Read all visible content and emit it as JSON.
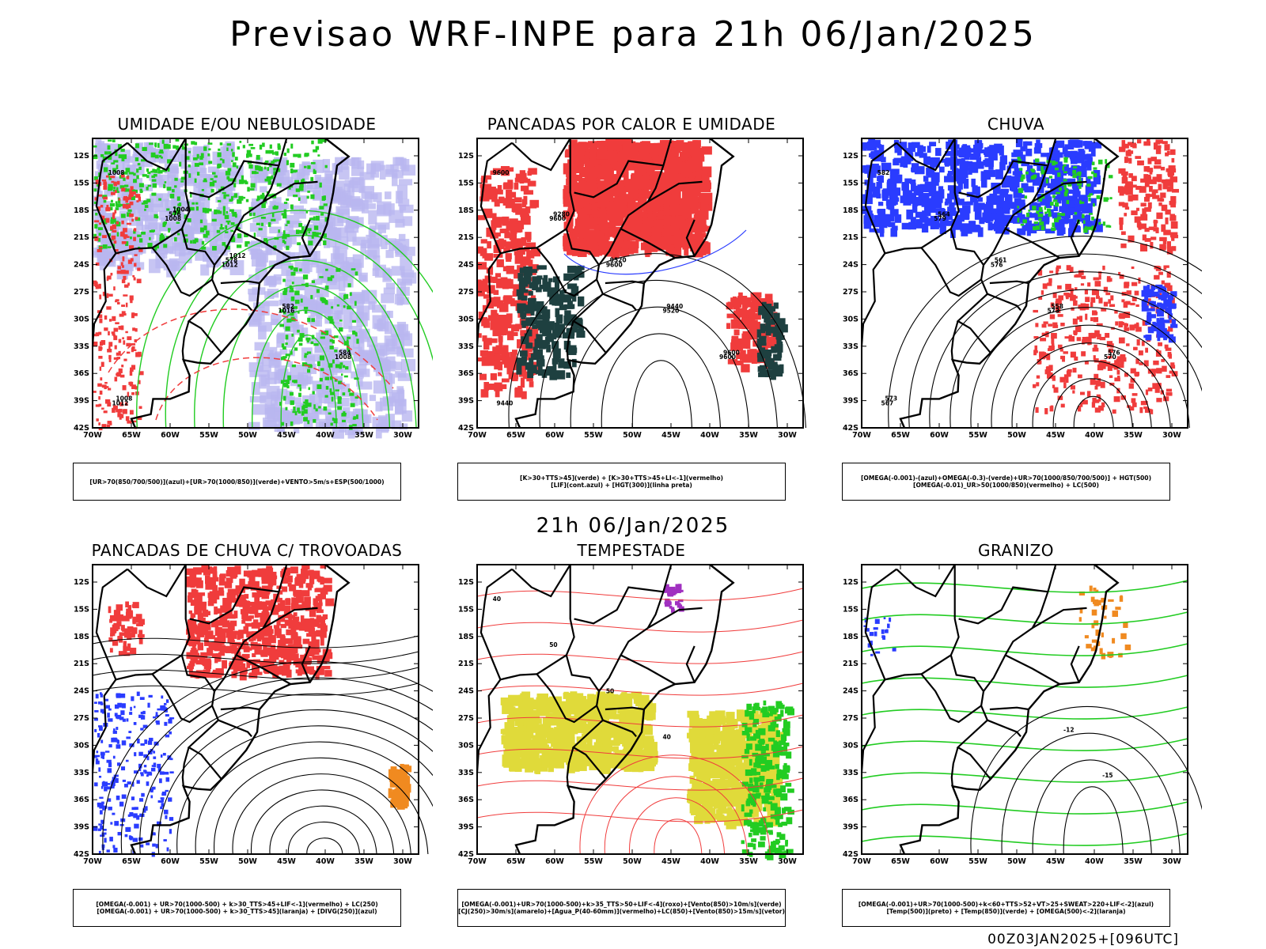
{
  "title": "Previsao WRF-INPE  para 21h 06/Jan/2025",
  "mid_title": "21h 06/Jan/2025",
  "footer": "00Z03JAN2025+[096UTC]",
  "axes": {
    "lat_ticks": [
      "12S",
      "15S",
      "18S",
      "21S",
      "24S",
      "27S",
      "30S",
      "33S",
      "36S",
      "39S",
      "42S"
    ],
    "lon_ticks": [
      "70W",
      "65W",
      "60W",
      "55W",
      "50W",
      "45W",
      "40W",
      "35W",
      "30W"
    ]
  },
  "colors": {
    "blue": "#2a3cff",
    "lavender": "#b9b6f0",
    "green": "#22cc22",
    "red": "#f03c3c",
    "darkteal": "#1e4040",
    "yellow": "#e0da3a",
    "orange": "#f08a20",
    "purple": "#a030c0"
  },
  "panels": [
    {
      "id": "umidade",
      "title": "UMIDADE E/OU NEBULOSIDADE",
      "legend": [
        "[UR>70(850/700/500)](azul)+[UR>70(1000/850)](verde)+VENTO>5m/s+ESP(500/1000)"
      ],
      "contour_labels": [
        "1008",
        "1008",
        "1012",
        "1016",
        "1008",
        "1012",
        "576",
        "578",
        "582",
        "584",
        "1008",
        "1004",
        "1012"
      ]
    },
    {
      "id": "pancadas-calor",
      "title": "PANCADAS POR CALOR E UMIDADE",
      "legend": [
        "[K>30+TTS>45](verde) + [K>30+TTS>45+LI<-1](vermelho)",
        "[LIF](cont.azul) + [HGT(300)](linha preta)"
      ],
      "contour_labels": [
        "9600",
        "9600",
        "9600",
        "9520",
        "9600",
        "9440",
        "9280",
        "9520",
        "9440",
        "9600"
      ]
    },
    {
      "id": "chuva",
      "title": "CHUVA",
      "legend": [
        "[OMEGA(-0.001)-(azul)+OMEGA(-0.3)-(verde)+UR>70(1000/850/700/500)] + HGT(500)",
        "[OMEGA(-0.01)_UR>50(1000/850)(vermelho) + LC(500)"
      ],
      "contour_labels": [
        "582",
        "579",
        "576",
        "573",
        "570",
        "567",
        "564",
        "561",
        "558",
        "576",
        "573"
      ]
    },
    {
      "id": "pancadas-trovoadas",
      "title": "PANCADAS DE CHUVA C/ TROVOADAS",
      "legend": [
        "[OMEGA(-0.001) + UR>70(1000-500) + k>30_TTS>45+LIF<-1](vermelho) + LC(250)",
        "[OMEGA(-0.001) + UR>70(1000-500) + k>30_TTS>45](laranja) + [DIVG(250)](azul)"
      ],
      "contour_labels": []
    },
    {
      "id": "tempestade",
      "title": "TEMPESTADE",
      "legend": [
        "[OMEGA(-0.001)+UR>70(1000-500)+k>35_TTS>50+LIF<-4](roxo)+[Vento(850)>10m/s](verde)",
        "[CJ(250)>30m/s](amarelo)+[Agua_P(40-60mm)](vermelho)+LC(850)+[Vento(850)>15m/s](vetor)"
      ],
      "contour_labels": [
        "40",
        "50",
        "50",
        "40"
      ]
    },
    {
      "id": "granizo",
      "title": "GRANIZO",
      "legend": [
        "[OMEGA(-0.001)+UR>70(1000-500)+k<60+TTS>52+VT>25+SWEAT>220+LIF<-2](azul)",
        "[Temp(500)](preto) + [Temp(850)](verde) + [OMEGA(500)<-2](laranja)"
      ],
      "contour_labels": [
        "-12",
        "-15"
      ]
    }
  ]
}
